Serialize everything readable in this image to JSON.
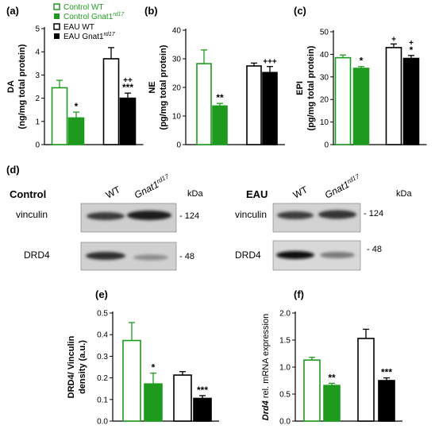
{
  "colors": {
    "green": "#1e9a1e",
    "black": "#000000",
    "white": "#ffffff"
  },
  "legend": [
    {
      "label": "Control WT",
      "style": "green-outline"
    },
    {
      "label": "Control Gnat1",
      "sup": "rd17",
      "style": "green-filled"
    },
    {
      "label": "EAU WT",
      "style": "black-outline"
    },
    {
      "label": "EAU Gnat1",
      "sup": "rd17",
      "style": "black-filled"
    }
  ],
  "chart_data": [
    {
      "id": "a",
      "panel_label": "(a)",
      "type": "bar",
      "ylabel_lines": [
        "DA",
        "(ng/mg total protein)"
      ],
      "ylim": [
        0,
        5
      ],
      "yticks": [
        0,
        1,
        2,
        3,
        4,
        5
      ],
      "series": [
        {
          "name": "Control WT",
          "value": 2.45,
          "error": 0.32,
          "marks": []
        },
        {
          "name": "Control Gnat1rd17",
          "value": 1.15,
          "error": 0.25,
          "marks": [
            "*"
          ]
        },
        {
          "name": "EAU WT",
          "value": 3.7,
          "error": 0.48,
          "marks": []
        },
        {
          "name": "EAU Gnat1rd17",
          "value": 2.0,
          "error": 0.22,
          "marks": [
            "***",
            "++"
          ]
        }
      ]
    },
    {
      "id": "b",
      "panel_label": "(b)",
      "type": "bar",
      "ylabel_lines": [
        "NE",
        "(pg/mg total protein)"
      ],
      "ylim": [
        0,
        40
      ],
      "yticks": [
        0,
        10,
        20,
        30,
        40
      ],
      "series": [
        {
          "name": "Control WT",
          "value": 28.3,
          "error": 4.8,
          "marks": []
        },
        {
          "name": "Control Gnat1rd17",
          "value": 13.5,
          "error": 0.9,
          "marks": [
            "**"
          ]
        },
        {
          "name": "EAU WT",
          "value": 27.5,
          "error": 1.0,
          "marks": []
        },
        {
          "name": "EAU Gnat1rd17",
          "value": 25.2,
          "error": 2.1,
          "marks": [
            "+++"
          ]
        }
      ]
    },
    {
      "id": "c",
      "panel_label": "(c)",
      "type": "bar",
      "ylabel_lines": [
        "EPI",
        "(pg/mg total protein)"
      ],
      "ylim": [
        0,
        50
      ],
      "yticks": [
        0,
        10,
        20,
        30,
        40,
        50
      ],
      "series": [
        {
          "name": "Control WT",
          "value": 38.5,
          "error": 1.2,
          "marks": []
        },
        {
          "name": "Control Gnat1rd17",
          "value": 33.8,
          "error": 0.8,
          "marks": [
            "*"
          ]
        },
        {
          "name": "EAU WT",
          "value": 43.0,
          "error": 1.6,
          "marks": [
            "+"
          ]
        },
        {
          "name": "EAU Gnat1rd17",
          "value": 38.2,
          "error": 1.3,
          "marks": [
            "*",
            "+"
          ]
        }
      ]
    },
    {
      "id": "e",
      "panel_label": "(e)",
      "type": "bar",
      "ylabel_lines": [
        "DRD4/ Vinculin",
        "density (a.u.)"
      ],
      "ylim": [
        0,
        0.5
      ],
      "yticks": [
        0.0,
        0.1,
        0.2,
        0.3,
        0.4,
        0.5
      ],
      "series": [
        {
          "name": "Control WT",
          "value": 0.373,
          "error": 0.083,
          "marks": []
        },
        {
          "name": "Control Gnat1rd17",
          "value": 0.172,
          "error": 0.05,
          "marks": [
            "*"
          ]
        },
        {
          "name": "EAU WT",
          "value": 0.213,
          "error": 0.016,
          "marks": []
        },
        {
          "name": "EAU Gnat1rd17",
          "value": 0.105,
          "error": 0.013,
          "marks": [
            "***"
          ]
        }
      ]
    },
    {
      "id": "f",
      "panel_label": "(f)",
      "type": "bar",
      "ylabel_lines": [
        "Drd4 rel. mRNA expression"
      ],
      "ylim": [
        0,
        2.0
      ],
      "yticks": [
        0.0,
        0.5,
        1.0,
        1.5,
        2.0
      ],
      "series": [
        {
          "name": "Control WT",
          "value": 1.13,
          "error": 0.05,
          "marks": []
        },
        {
          "name": "Control Gnat1rd17",
          "value": 0.66,
          "error": 0.04,
          "marks": [
            "**"
          ]
        },
        {
          "name": "EAU WT",
          "value": 1.53,
          "error": 0.17,
          "marks": []
        },
        {
          "name": "EAU Gnat1rd17",
          "value": 0.75,
          "error": 0.05,
          "marks": [
            "***"
          ]
        }
      ]
    }
  ],
  "blot": {
    "panel_label": "(d)",
    "kda": "kDa",
    "groups": [
      {
        "title": "Control",
        "lane1": "WT",
        "lane2": "Gnat1",
        "lane2_sup": "rd17",
        "rows": [
          {
            "label": "vinculin",
            "mw": "- 124"
          },
          {
            "label": "DRD4",
            "mw": "- 48"
          }
        ]
      },
      {
        "title": "EAU",
        "lane1": "WT",
        "lane2": "Gnat1",
        "lane2_sup": "rd17",
        "rows": [
          {
            "label": "vinculin",
            "mw": "- 124"
          },
          {
            "label": "DRD4",
            "mw": "- 48"
          }
        ]
      }
    ]
  }
}
